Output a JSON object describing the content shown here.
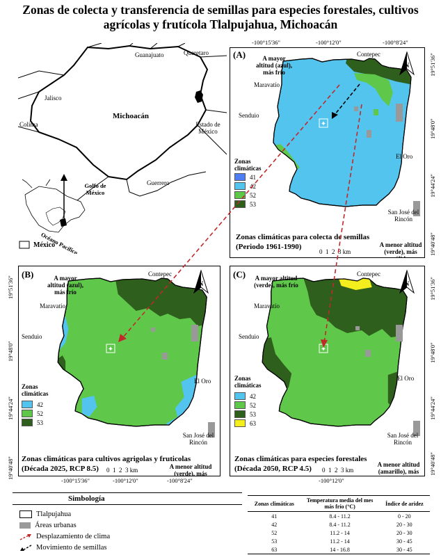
{
  "title": "Zonas de colecta y transferencia de semillas para especies forestales, cultivos agrícolas y frutícola Tlalpujahua, Michoacán",
  "colors": {
    "z41": "#4f7df2",
    "z42": "#52c4ee",
    "z52": "#5fc84a",
    "z53": "#2f5f1d",
    "z63": "#f5ee1e",
    "urban": "#999999",
    "arrow_red": "#c0282a"
  },
  "overview": {
    "labels": [
      "Guanajuato",
      "Queretaro",
      "Jalisco",
      "Michoacán",
      "Estado de México",
      "Colima",
      "Guerrero",
      "Golfo de México",
      "Océano Pacífico"
    ],
    "mexico_legend": "México"
  },
  "common_labels": {
    "contepec": "Contepec",
    "maravatio": "Maravatío",
    "senduio": "Senduio",
    "el_oro": "El Oro",
    "san_jose": "San José del Rincón",
    "zonas": "Zonas climáticas",
    "scale": "0  1  2  3 km"
  },
  "coords_top": [
    "-100°15'36\"",
    "-100°12'0\"",
    "-100°8'24\""
  ],
  "coords_bottom": [
    "-100°15'36\"",
    "-100°12'0\"",
    "-100°8'24\""
  ],
  "coords_side": [
    "19°51'36\"",
    "19°48'0\"",
    "19°44'24\"",
    "19°40'48\""
  ],
  "panel_a": {
    "letter": "(A)",
    "high": "A mayor altitud (azul), más frío",
    "low": "A menor altitud (verde), más cálido",
    "caption_1": "Zonas climáticas para colecta de semillas",
    "caption_2": "(Periodo 1961-1990)",
    "legend": [
      "41",
      "42",
      "52",
      "53"
    ]
  },
  "panel_b": {
    "letter": "(B)",
    "high": "A mayor altitud (azul), más frío",
    "low": "A menor altitud (verde), más cálido",
    "caption_1": "Zonas climáticas para cultivos agrigolas y fruticolas",
    "caption_2": "(Década 2025, RCP 8.5)",
    "legend": [
      "42",
      "52",
      "53"
    ]
  },
  "panel_c": {
    "letter": "(C)",
    "high": "A mayor altitud (verde), más frío",
    "low": "A menor altitud (amarillo), más cálido",
    "caption_1": "Zonas climáticas para especies forestales",
    "caption_2": "(Década 2050, RCP 4.5)",
    "legend": [
      "42",
      "52",
      "53",
      "63"
    ]
  },
  "symbology": {
    "title": "Simbología",
    "items": [
      "Tlalpujahua",
      "Áreas urbanas",
      "Desplazamiento de clima",
      "Movimiento de semillas"
    ]
  },
  "table": {
    "headers": [
      "Zonas climáticas",
      "Temperatura media del mes más frío (°C)",
      "Índice de aridez"
    ],
    "rows": [
      [
        "41",
        "8.4 - 11.2",
        "0 - 20"
      ],
      [
        "42",
        "8.4 - 11.2",
        "20 - 30"
      ],
      [
        "52",
        "11.2 - 14",
        "20 - 30"
      ],
      [
        "53",
        "11.2 - 14",
        "30 - 45"
      ],
      [
        "63",
        "14 - 16.8",
        "30 - 45"
      ]
    ]
  }
}
